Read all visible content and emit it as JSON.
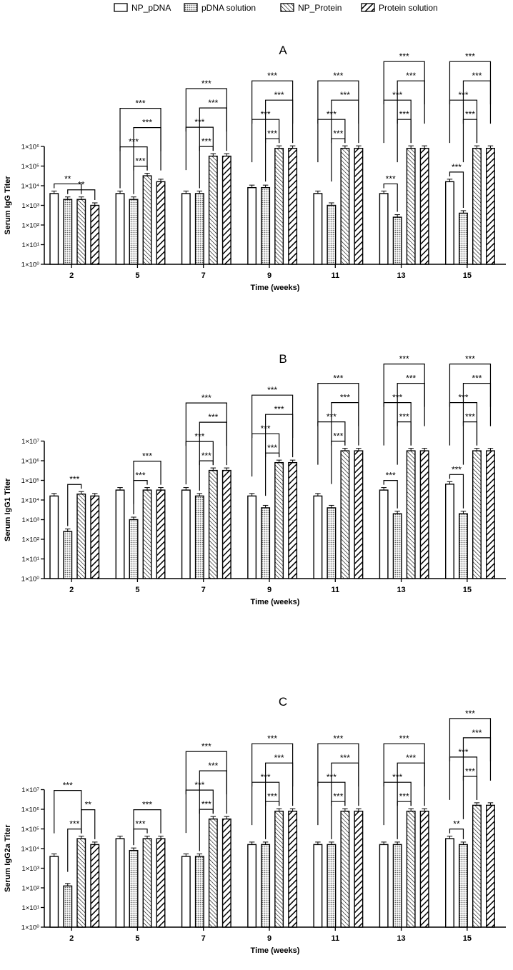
{
  "legend": {
    "placement": "top-center",
    "items": [
      {
        "name": "NP_pDNA",
        "pattern": "solid-white"
      },
      {
        "name": "pDNA solution",
        "pattern": "dots"
      },
      {
        "name": "NP_Protein",
        "pattern": "thin-diagonal"
      },
      {
        "name": "Protein solution",
        "pattern": "thick-diagonal"
      }
    ]
  },
  "chart_data": [
    {
      "type": "bar",
      "title": "A",
      "xlabel": "Time (weeks)",
      "ylabel": "Serum IgG Titer",
      "yscale": "log",
      "ylim": [
        1,
        1000000
      ],
      "yticks": [
        1,
        10,
        100,
        1000,
        10000,
        100000,
        1000000
      ],
      "ytick_labels": [
        "1×10⁰",
        "1×10¹",
        "1×10²",
        "1×10³",
        "1×10⁴",
        "1×10⁵",
        "1×10⁶"
      ],
      "categories": [
        "2",
        "5",
        "7",
        "9",
        "11",
        "13",
        "15"
      ],
      "series": [
        {
          "name": "NP_pDNA",
          "values": [
            4000,
            4000,
            4000,
            8000,
            4000,
            4000,
            16000
          ]
        },
        {
          "name": "pDNA solution",
          "values": [
            2000,
            2000,
            4000,
            8000,
            1000,
            250,
            400
          ]
        },
        {
          "name": "NP_Protein",
          "values": [
            2000,
            32000,
            320000,
            800000,
            800000,
            800000,
            800000
          ]
        },
        {
          "name": "Protein solution",
          "values": [
            1000,
            16000,
            320000,
            800000,
            800000,
            800000,
            800000
          ]
        }
      ],
      "annotations": [
        {
          "category": 0,
          "from": 0,
          "to": 2,
          "label": "**",
          "level": 0
        },
        {
          "category": 0,
          "from": 1,
          "to": 3,
          "label": "**",
          "level": 0
        },
        {
          "category": 1,
          "from": 1,
          "to": 2,
          "label": "***",
          "level": 0
        },
        {
          "category": 1,
          "from": 0,
          "to": 2,
          "label": "***",
          "level": 1
        },
        {
          "category": 1,
          "from": 1,
          "to": 3,
          "label": "***",
          "level": 2
        },
        {
          "category": 1,
          "from": 0,
          "to": 3,
          "label": "***",
          "level": 3
        },
        {
          "category": 2,
          "from": 1,
          "to": 2,
          "label": "***",
          "level": 0
        },
        {
          "category": 2,
          "from": 0,
          "to": 2,
          "label": "***",
          "level": 1
        },
        {
          "category": 2,
          "from": 1,
          "to": 3,
          "label": "***",
          "level": 2
        },
        {
          "category": 2,
          "from": 0,
          "to": 3,
          "label": "***",
          "level": 3
        },
        {
          "category": 3,
          "from": 1,
          "to": 2,
          "label": "***",
          "level": 0
        },
        {
          "category": 3,
          "from": 0,
          "to": 2,
          "label": "***",
          "level": 1
        },
        {
          "category": 3,
          "from": 1,
          "to": 3,
          "label": "***",
          "level": 2
        },
        {
          "category": 3,
          "from": 0,
          "to": 3,
          "label": "***",
          "level": 3
        },
        {
          "category": 4,
          "from": 1,
          "to": 2,
          "label": "***",
          "level": 0
        },
        {
          "category": 4,
          "from": 0,
          "to": 2,
          "label": "***",
          "level": 1
        },
        {
          "category": 4,
          "from": 1,
          "to": 3,
          "label": "***",
          "level": 2
        },
        {
          "category": 4,
          "from": 0,
          "to": 3,
          "label": "***",
          "level": 3
        },
        {
          "category": 5,
          "from": 0,
          "to": 1,
          "label": "***",
          "level": 0
        },
        {
          "category": 5,
          "from": 1,
          "to": 2,
          "label": "***",
          "level": 1
        },
        {
          "category": 5,
          "from": 0,
          "to": 2,
          "label": "***",
          "level": 2
        },
        {
          "category": 5,
          "from": 1,
          "to": 3,
          "label": "***",
          "level": 3
        },
        {
          "category": 5,
          "from": 0,
          "to": 3,
          "label": "***",
          "level": 4
        },
        {
          "category": 6,
          "from": 0,
          "to": 1,
          "label": "***",
          "level": 0
        },
        {
          "category": 6,
          "from": 1,
          "to": 2,
          "label": "***",
          "level": 1
        },
        {
          "category": 6,
          "from": 0,
          "to": 2,
          "label": "***",
          "level": 2
        },
        {
          "category": 6,
          "from": 1,
          "to": 3,
          "label": "***",
          "level": 3
        },
        {
          "category": 6,
          "from": 0,
          "to": 3,
          "label": "***",
          "level": 4
        }
      ]
    },
    {
      "type": "bar",
      "title": "B",
      "xlabel": "Time (weeks)",
      "ylabel": "Serum IgG1 Titer",
      "yscale": "log",
      "ylim": [
        1,
        10000000
      ],
      "yticks": [
        1,
        10,
        100,
        1000,
        10000,
        100000,
        1000000,
        10000000
      ],
      "ytick_labels": [
        "1×10⁰",
        "1×10¹",
        "1×10²",
        "1×10³",
        "1×10⁴",
        "1×10⁵",
        "1×10⁶",
        "1×10⁷"
      ],
      "categories": [
        "2",
        "5",
        "7",
        "9",
        "11",
        "13",
        "15"
      ],
      "series": [
        {
          "name": "NP_pDNA",
          "values": [
            16000,
            32000,
            32000,
            16000,
            16000,
            32000,
            64000
          ]
        },
        {
          "name": "pDNA solution",
          "values": [
            250,
            1000,
            16000,
            4000,
            4000,
            2000,
            2000
          ]
        },
        {
          "name": "NP_Protein",
          "values": [
            20000,
            32000,
            320000,
            800000,
            3200000,
            3200000,
            3200000
          ]
        },
        {
          "name": "Protein solution",
          "values": [
            16000,
            32000,
            320000,
            800000,
            3200000,
            3200000,
            3200000
          ]
        }
      ],
      "annotations": [
        {
          "category": 0,
          "from": 1,
          "to": 2,
          "label": "***",
          "level": 0
        },
        {
          "category": 1,
          "from": 1,
          "to": 2,
          "label": "***",
          "level": 0
        },
        {
          "category": 1,
          "from": 1,
          "to": 3,
          "label": "***",
          "level": 1
        },
        {
          "category": 2,
          "from": 1,
          "to": 2,
          "label": "***",
          "level": 0
        },
        {
          "category": 2,
          "from": 0,
          "to": 2,
          "label": "***",
          "level": 1
        },
        {
          "category": 2,
          "from": 1,
          "to": 3,
          "label": "***",
          "level": 2
        },
        {
          "category": 2,
          "from": 0,
          "to": 3,
          "label": "***",
          "level": 3
        },
        {
          "category": 3,
          "from": 1,
          "to": 2,
          "label": "***",
          "level": 0
        },
        {
          "category": 3,
          "from": 0,
          "to": 2,
          "label": "***",
          "level": 1
        },
        {
          "category": 3,
          "from": 1,
          "to": 3,
          "label": "***",
          "level": 2
        },
        {
          "category": 3,
          "from": 0,
          "to": 3,
          "label": "***",
          "level": 3
        },
        {
          "category": 4,
          "from": 1,
          "to": 2,
          "label": "***",
          "level": 0
        },
        {
          "category": 4,
          "from": 0,
          "to": 2,
          "label": "***",
          "level": 1
        },
        {
          "category": 4,
          "from": 1,
          "to": 3,
          "label": "***",
          "level": 2
        },
        {
          "category": 4,
          "from": 0,
          "to": 3,
          "label": "***",
          "level": 3
        },
        {
          "category": 5,
          "from": 0,
          "to": 1,
          "label": "***",
          "level": 0
        },
        {
          "category": 5,
          "from": 1,
          "to": 2,
          "label": "***",
          "level": 1
        },
        {
          "category": 5,
          "from": 0,
          "to": 2,
          "label": "***",
          "level": 2
        },
        {
          "category": 5,
          "from": 1,
          "to": 3,
          "label": "***",
          "level": 3
        },
        {
          "category": 5,
          "from": 0,
          "to": 3,
          "label": "***",
          "level": 4
        },
        {
          "category": 6,
          "from": 0,
          "to": 1,
          "label": "***",
          "level": 0
        },
        {
          "category": 6,
          "from": 1,
          "to": 2,
          "label": "***",
          "level": 1
        },
        {
          "category": 6,
          "from": 0,
          "to": 2,
          "label": "***",
          "level": 2
        },
        {
          "category": 6,
          "from": 1,
          "to": 3,
          "label": "***",
          "level": 3
        },
        {
          "category": 6,
          "from": 0,
          "to": 3,
          "label": "***",
          "level": 4
        }
      ]
    },
    {
      "type": "bar",
      "title": "C",
      "xlabel": "Time (weeks)",
      "ylabel": "Serum IgG2a Titer",
      "yscale": "log",
      "ylim": [
        1,
        10000000
      ],
      "yticks": [
        1,
        10,
        100,
        1000,
        10000,
        100000,
        1000000,
        10000000
      ],
      "ytick_labels": [
        "1×10⁰",
        "1×10¹",
        "1×10²",
        "1×10³",
        "1×10⁴",
        "1×10⁵",
        "1×10⁶",
        "1×10⁷"
      ],
      "categories": [
        "2",
        "5",
        "7",
        "9",
        "11",
        "13",
        "15"
      ],
      "series": [
        {
          "name": "NP_pDNA",
          "values": [
            4000,
            32000,
            4000,
            16000,
            16000,
            16000,
            32000
          ]
        },
        {
          "name": "pDNA solution",
          "values": [
            125,
            8000,
            4000,
            16000,
            16000,
            16000,
            16000
          ]
        },
        {
          "name": "NP_Protein",
          "values": [
            32000,
            32000,
            320000,
            800000,
            800000,
            800000,
            1600000
          ]
        },
        {
          "name": "Protein solution",
          "values": [
            16000,
            32000,
            320000,
            800000,
            800000,
            800000,
            1600000
          ]
        }
      ],
      "annotations": [
        {
          "category": 0,
          "from": 1,
          "to": 2,
          "label": "***",
          "level": 0
        },
        {
          "category": 0,
          "from": 2,
          "to": 3,
          "label": "**",
          "level": 1
        },
        {
          "category": 0,
          "from": 0,
          "to": 2,
          "label": "***",
          "level": 2
        },
        {
          "category": 1,
          "from": 1,
          "to": 2,
          "label": "***",
          "level": 0
        },
        {
          "category": 1,
          "from": 1,
          "to": 3,
          "label": "***",
          "level": 1
        },
        {
          "category": 2,
          "from": 1,
          "to": 2,
          "label": "***",
          "level": 0
        },
        {
          "category": 2,
          "from": 0,
          "to": 2,
          "label": "***",
          "level": 1
        },
        {
          "category": 2,
          "from": 1,
          "to": 3,
          "label": "***",
          "level": 2
        },
        {
          "category": 2,
          "from": 0,
          "to": 3,
          "label": "***",
          "level": 3
        },
        {
          "category": 3,
          "from": 1,
          "to": 2,
          "label": "***",
          "level": 0
        },
        {
          "category": 3,
          "from": 0,
          "to": 2,
          "label": "***",
          "level": 1
        },
        {
          "category": 3,
          "from": 1,
          "to": 3,
          "label": "***",
          "level": 2
        },
        {
          "category": 3,
          "from": 0,
          "to": 3,
          "label": "***",
          "level": 3
        },
        {
          "category": 4,
          "from": 1,
          "to": 2,
          "label": "***",
          "level": 0
        },
        {
          "category": 4,
          "from": 0,
          "to": 2,
          "label": "***",
          "level": 1
        },
        {
          "category": 4,
          "from": 1,
          "to": 3,
          "label": "***",
          "level": 2
        },
        {
          "category": 4,
          "from": 0,
          "to": 3,
          "label": "***",
          "level": 3
        },
        {
          "category": 5,
          "from": 1,
          "to": 2,
          "label": "***",
          "level": 0
        },
        {
          "category": 5,
          "from": 0,
          "to": 2,
          "label": "***",
          "level": 1
        },
        {
          "category": 5,
          "from": 1,
          "to": 3,
          "label": "***",
          "level": 2
        },
        {
          "category": 5,
          "from": 0,
          "to": 3,
          "label": "***",
          "level": 3
        },
        {
          "category": 6,
          "from": 0,
          "to": 1,
          "label": "**",
          "level": 0
        },
        {
          "category": 6,
          "from": 1,
          "to": 2,
          "label": "***",
          "level": 1
        },
        {
          "category": 6,
          "from": 0,
          "to": 2,
          "label": "***",
          "level": 2
        },
        {
          "category": 6,
          "from": 1,
          "to": 3,
          "label": "***",
          "level": 3
        },
        {
          "category": 6,
          "from": 0,
          "to": 3,
          "label": "***",
          "level": 4
        }
      ]
    }
  ]
}
